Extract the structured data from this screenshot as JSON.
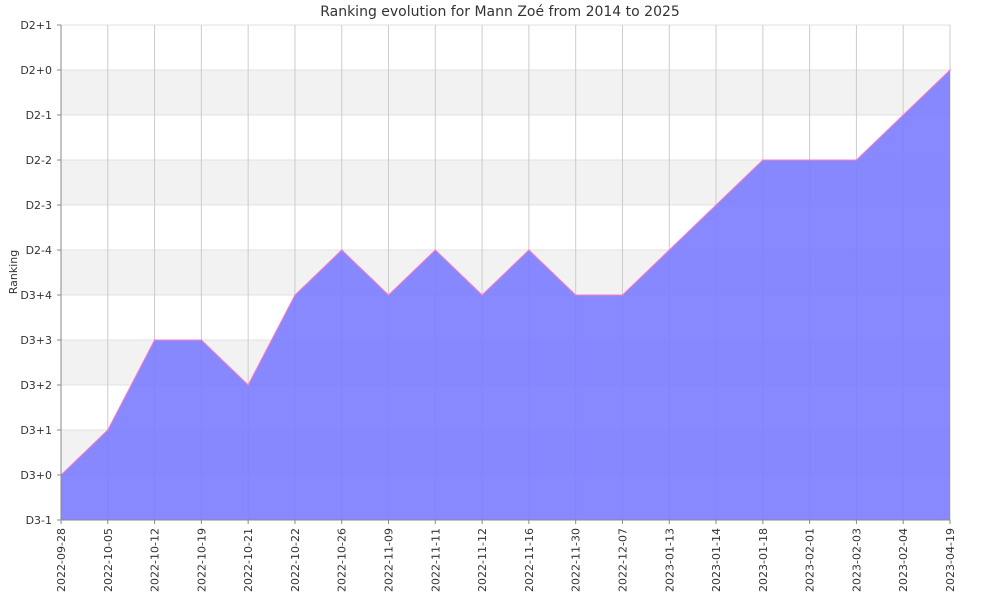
{
  "chart_data": {
    "type": "area",
    "title": "Ranking evolution for Mann Zoé from 2014 to 2025",
    "xlabel": "",
    "ylabel": "Ranking",
    "y_tick_labels": [
      "D3-1",
      "D3+0",
      "D3+1",
      "D3+2",
      "D3+3",
      "D3+4",
      "D2-4",
      "D2-3",
      "D2-2",
      "D2-1",
      "D2+0",
      "D2+1"
    ],
    "categories": [
      "2022-09-28",
      "2022-10-05",
      "2022-10-12",
      "2022-10-19",
      "2022-10-21",
      "2022-10-22",
      "2022-10-26",
      "2022-11-09",
      "2022-11-11",
      "2022-11-12",
      "2022-11-16",
      "2022-11-30",
      "2022-12-07",
      "2023-01-13",
      "2023-01-14",
      "2023-01-18",
      "2023-02-01",
      "2023-02-03",
      "2023-02-04",
      "2023-04-19"
    ],
    "series": [
      {
        "name": "",
        "values": [
          "D3+0",
          "D3+1",
          "D3+3",
          "D3+3",
          "D3+2",
          "D3+4",
          "D2-4",
          "D3+4",
          "D2-4",
          "D3+4",
          "D2-4",
          "D3+4",
          "D3+4",
          "D2-4",
          "D2-3",
          "D2-2",
          "D2-2",
          "D2-2",
          "D2-1",
          "D2+0"
        ]
      }
    ],
    "grid": true,
    "alternate_row_bands": true,
    "legend": "none",
    "colors": {
      "fill": "#7b7bff",
      "line": "#ff7bc0",
      "band": "#f2f2f2",
      "grid": "#cccccc",
      "axis": "#888888"
    }
  }
}
